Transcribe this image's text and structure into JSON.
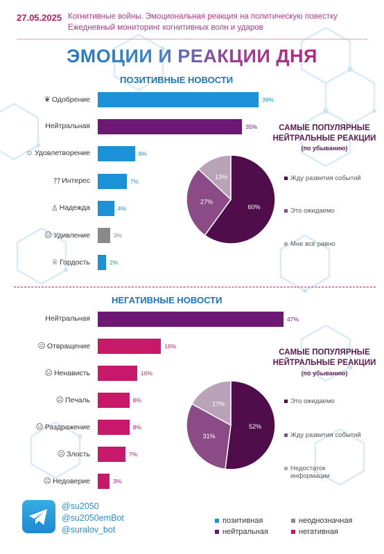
{
  "header": {
    "date": "27.05.2025",
    "line1": "Когнитивные войны. Эмоциональная реакция на политическую повестку",
    "line2": "Ежедневный мониторинг когнитивных волн и ударов"
  },
  "main_title": "ЭМОЦИИ И РЕАКЦИИ ДНЯ",
  "colors": {
    "positive": "#1b91d8",
    "neutral": "#6c1874",
    "ambiguous": "#8a8a8a",
    "negative": "#c8186a",
    "pie_dark": "#4f0d4c",
    "pie_mid": "#8b4b87",
    "pie_light": "#b9a3b8"
  },
  "positive_section": {
    "title": "ПОЗИТИВНЫЕ НОВОСТИ",
    "pie_title_1": "САМЫЕ ПОПУЛЯРНЫЕ",
    "pie_title_2": "НЕЙТРАЛЬНЫЕ РЕАКЦИИ",
    "pie_subtitle": "(по убыванию)"
  },
  "negative_section": {
    "title": "НЕГАТИВНЫЕ НОВОСТИ",
    "pie_title_1": "САМЫЕ ПОПУЛЯРНЫЕ",
    "pie_title_2": "НЕЙТРАЛЬНЫЕ РЕАКЦИИ",
    "pie_subtitle": "(по убыванию)"
  },
  "chart_data": [
    {
      "type": "bar",
      "orientation": "horizontal",
      "title": "ПОЗИТИВНЫЕ НОВОСТИ",
      "categories": [
        "Одобрение",
        "Нейтральная",
        "Удовлетворение",
        "Интерес",
        "Надежда",
        "Удивление",
        "Гордость"
      ],
      "values": [
        39,
        35,
        9,
        7,
        4,
        3,
        2
      ],
      "labels": [
        "39%",
        "35%",
        "9%",
        "7%",
        "4%",
        "3%",
        "2%"
      ],
      "icons": [
        "❦",
        "",
        "☺",
        "⁇",
        "♙",
        "☹",
        "♕"
      ],
      "kinds": [
        "positive",
        "neutral",
        "positive",
        "positive",
        "positive",
        "ambiguous",
        "positive"
      ]
    },
    {
      "type": "pie",
      "title": "САМЫЕ ПОПУЛЯРНЫЕ НЕЙТРАЛЬНЫЕ РЕАКЦИИ",
      "categories": [
        "Жду развития событий",
        "Это ожидаемо",
        "Мне всё равно"
      ],
      "values": [
        60,
        27,
        13
      ],
      "labels": [
        "60%",
        "27%",
        "13%"
      ],
      "legend": [
        "Жду развития событий",
        "Это ожидаемо",
        "Мне всё равно"
      ]
    },
    {
      "type": "bar",
      "orientation": "horizontal",
      "title": "НЕГАТИВНЫЕ НОВОСТИ",
      "categories": [
        "Нейтральная",
        "Отвращение",
        "Ненависть",
        "Печаль",
        "Раздражение",
        "Злость",
        "Недоверие"
      ],
      "values": [
        47,
        16,
        10,
        8,
        8,
        7,
        3
      ],
      "labels": [
        "47%",
        "16%",
        "10%",
        "8%",
        "8%",
        "7%",
        "3%"
      ],
      "icons": [
        "",
        "☹",
        "☹",
        "☹",
        "☹",
        "☹",
        "☹"
      ],
      "kinds": [
        "neutral",
        "negative",
        "negative",
        "negative",
        "negative",
        "negative",
        "negative"
      ]
    },
    {
      "type": "pie",
      "title": "САМЫЕ ПОПУЛЯРНЫЕ НЕЙТРАЛЬНЫЕ РЕАКЦИИ",
      "categories": [
        "Это ожидаемо",
        "Жду развития событий",
        "Недостаток информации"
      ],
      "values": [
        52,
        31,
        17
      ],
      "labels": [
        "52%",
        "31%",
        "17%"
      ],
      "legend": [
        "Это ожидаемо",
        "Жду развития событий",
        "Недостаток\nинформации"
      ]
    }
  ],
  "footer": {
    "icon": "telegram-icon",
    "handles": [
      "@su2050",
      "@su2050emBot",
      "@suralov_bot"
    ],
    "legend": [
      {
        "label": "позитивная",
        "kind": "positive"
      },
      {
        "label": "неоднозначная",
        "kind": "ambiguous"
      },
      {
        "label": "нейтральная",
        "kind": "neutral"
      },
      {
        "label": "негативная",
        "kind": "negative"
      }
    ]
  }
}
